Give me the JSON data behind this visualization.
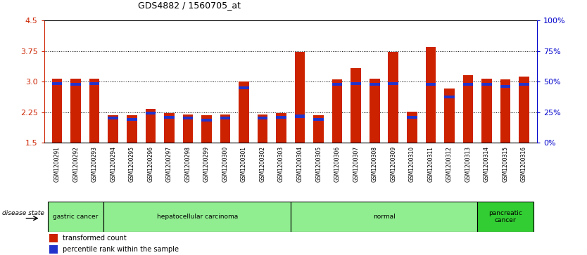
{
  "title": "GDS4882 / 1560705_at",
  "samples": [
    "GSM1200291",
    "GSM1200292",
    "GSM1200293",
    "GSM1200294",
    "GSM1200295",
    "GSM1200296",
    "GSM1200297",
    "GSM1200298",
    "GSM1200299",
    "GSM1200300",
    "GSM1200301",
    "GSM1200302",
    "GSM1200303",
    "GSM1200304",
    "GSM1200305",
    "GSM1200306",
    "GSM1200307",
    "GSM1200308",
    "GSM1200309",
    "GSM1200310",
    "GSM1200311",
    "GSM1200312",
    "GSM1200313",
    "GSM1200314",
    "GSM1200315",
    "GSM1200316"
  ],
  "red_values": [
    3.08,
    3.08,
    3.08,
    2.18,
    2.18,
    2.33,
    2.23,
    2.2,
    2.18,
    2.2,
    3.0,
    2.2,
    2.23,
    3.72,
    2.18,
    3.05,
    3.33,
    3.08,
    3.72,
    2.27,
    3.85,
    2.83,
    3.15,
    3.08,
    3.05,
    3.12
  ],
  "blue_values": [
    2.95,
    2.93,
    2.95,
    2.1,
    2.08,
    2.22,
    2.12,
    2.1,
    2.06,
    2.1,
    2.85,
    2.1,
    2.12,
    2.15,
    2.08,
    2.93,
    2.95,
    2.93,
    2.95,
    2.13,
    2.93,
    2.62,
    2.93,
    2.93,
    2.88,
    2.93
  ],
  "groups": [
    {
      "label": "gastric cancer",
      "start": 0,
      "end": 2,
      "color": "#90EE90",
      "dark": false
    },
    {
      "label": "hepatocellular carcinoma",
      "start": 3,
      "end": 12,
      "color": "#90EE90",
      "dark": false
    },
    {
      "label": "normal",
      "start": 13,
      "end": 22,
      "color": "#90EE90",
      "dark": false
    },
    {
      "label": "pancreatic\ncancer",
      "start": 23,
      "end": 25,
      "color": "#32CD32",
      "dark": true
    }
  ],
  "y_min": 1.5,
  "y_max": 4.5,
  "y_ticks_red": [
    1.5,
    2.25,
    3.0,
    3.75,
    4.5
  ],
  "y_ticks_blue": [
    0,
    25,
    50,
    75,
    100
  ],
  "grid_lines": [
    2.25,
    3.0,
    3.75
  ],
  "bar_color_red": "#CC2200",
  "bar_color_blue": "#2233CC",
  "bg_color": "#FFFFFF",
  "axis_color_red": "#CC2200",
  "axis_color_blue": "#0000CC",
  "legend_red": "transformed count",
  "legend_blue": "percentile rank within the sample",
  "disease_state_label": "disease state"
}
